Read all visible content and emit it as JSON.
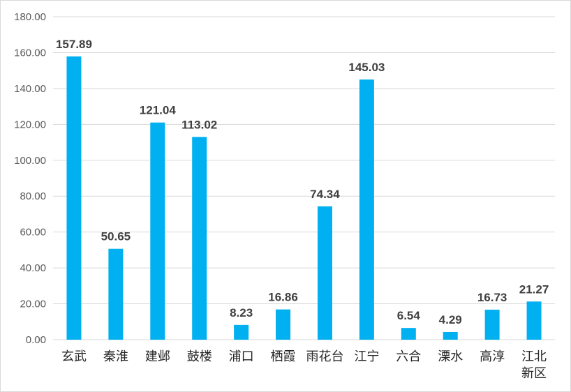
{
  "chart_data": {
    "type": "bar",
    "title": "",
    "xlabel": "",
    "ylabel": "",
    "categories": [
      "玄武",
      "秦淮",
      "建邺",
      "鼓楼",
      "浦口",
      "栖霞",
      "雨花台",
      "江宁",
      "六合",
      "溧水",
      "高淳",
      "江北新区"
    ],
    "category_lines": [
      [
        "玄武"
      ],
      [
        "秦淮"
      ],
      [
        "建邺"
      ],
      [
        "鼓楼"
      ],
      [
        "浦口"
      ],
      [
        "栖霞"
      ],
      [
        "雨花台"
      ],
      [
        "江宁"
      ],
      [
        "六合"
      ],
      [
        "溧水"
      ],
      [
        "高淳"
      ],
      [
        "江北",
        "新区"
      ]
    ],
    "values": [
      157.89,
      50.65,
      121.04,
      113.02,
      8.23,
      16.86,
      74.34,
      145.03,
      6.54,
      4.29,
      16.73,
      21.27
    ],
    "value_labels": [
      "157.89",
      "50.65",
      "121.04",
      "113.02",
      "8.23",
      "16.86",
      "74.34",
      "145.03",
      "6.54",
      "4.29",
      "16.73",
      "21.27"
    ],
    "ylim": [
      0,
      180
    ],
    "yticks": [
      0,
      20,
      40,
      60,
      80,
      100,
      120,
      140,
      160,
      180
    ],
    "ytick_labels": [
      "0.00",
      "20.00",
      "40.00",
      "60.00",
      "80.00",
      "100.00",
      "120.00",
      "140.00",
      "160.00",
      "180.00"
    ],
    "grid": true,
    "legend": "none",
    "bar_color": "#00b0f0",
    "gridline_color": "#d9d9d9"
  }
}
